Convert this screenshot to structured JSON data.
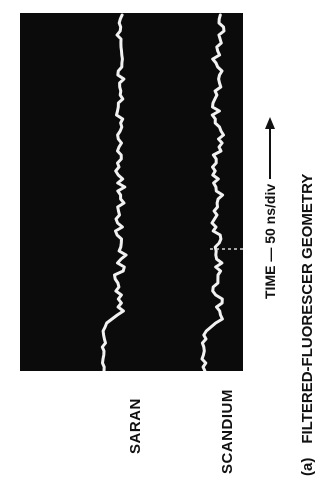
{
  "figure": {
    "panel_label": "(a)",
    "caption": "FILTERED-FLUORESCER GEOMETRY",
    "axis_label": "TIME — 50 ns/div",
    "traces": [
      {
        "name": "SARAN"
      },
      {
        "name": "SCANDIUM"
      }
    ]
  },
  "colors": {
    "background": "#ffffff",
    "scope_background": "#0b0b0b",
    "trace": "#f2f2f2",
    "marker": "#d8d8d8",
    "text": "#111111"
  }
}
